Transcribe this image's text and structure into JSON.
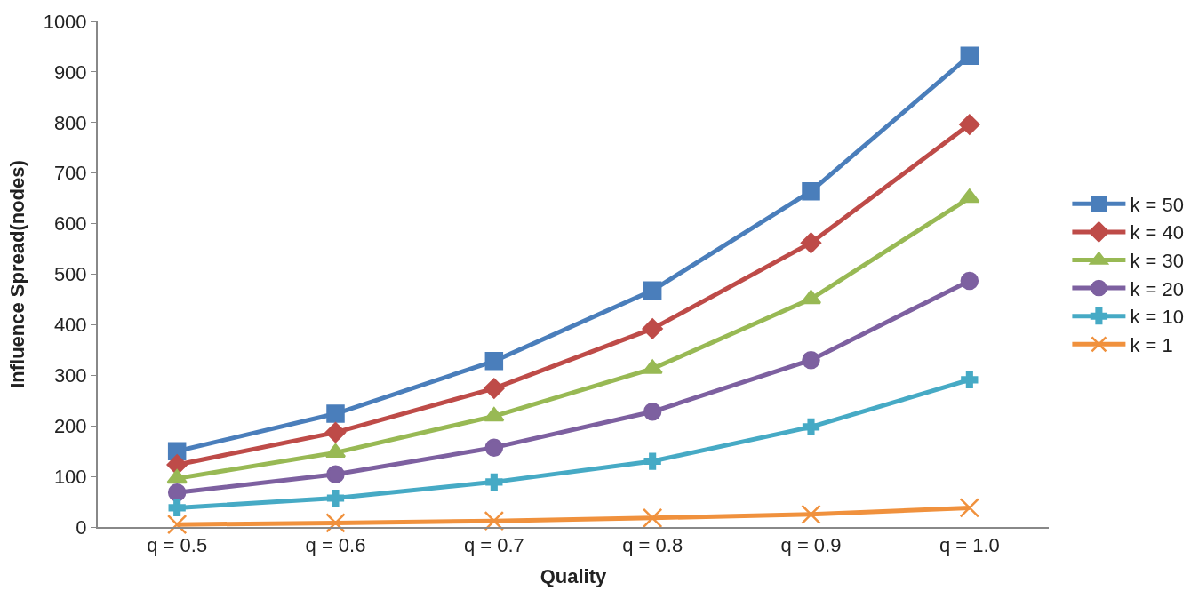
{
  "chart_data": {
    "type": "line",
    "xlabel": "Quality",
    "ylabel": "Influence Spread(nodes)",
    "categories": [
      "q = 0.5",
      "q = 0.6",
      "q = 0.7",
      "q = 0.8",
      "q = 0.9",
      "q = 1.0"
    ],
    "ylim": [
      0,
      1000
    ],
    "yticks": [
      0,
      100,
      200,
      300,
      400,
      500,
      600,
      700,
      800,
      900,
      1000
    ],
    "legend": "right",
    "line_style": "solid",
    "series": [
      {
        "name": "k = 50",
        "color": "#4a7ebb",
        "marker": "square",
        "values": [
          150,
          224,
          328,
          468,
          664,
          932
        ]
      },
      {
        "name": "k = 40",
        "color": "#be4b48",
        "marker": "diamond",
        "values": [
          123,
          187,
          274,
          392,
          562,
          796
        ]
      },
      {
        "name": "k = 30",
        "color": "#98b954",
        "marker": "triangle",
        "values": [
          96,
          147,
          219,
          313,
          451,
          651
        ]
      },
      {
        "name": "k = 20",
        "color": "#7d60a0",
        "marker": "circle",
        "values": [
          68,
          104,
          157,
          228,
          330,
          487
        ]
      },
      {
        "name": "k = 10",
        "color": "#46aac5",
        "marker": "cross",
        "values": [
          38,
          57,
          89,
          130,
          198,
          291
        ]
      },
      {
        "name": "k = 1",
        "color": "#f0913d",
        "marker": "x",
        "values": [
          5,
          8,
          12,
          18,
          25,
          38
        ]
      }
    ]
  }
}
